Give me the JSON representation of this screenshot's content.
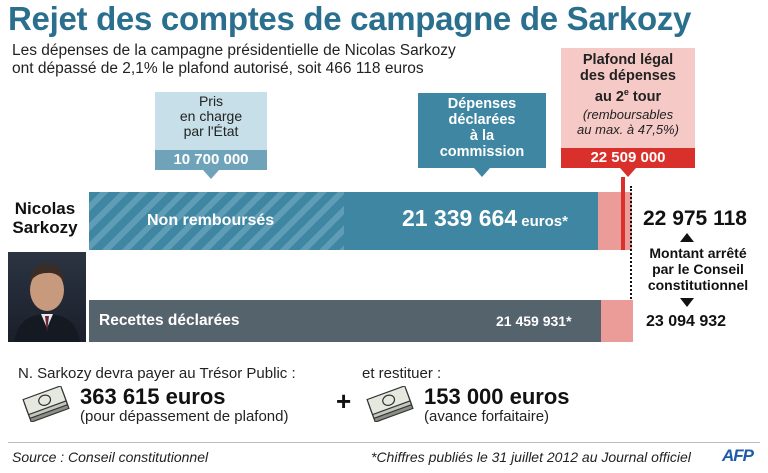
{
  "header": {
    "title": "Rejet des comptes de campagne de Sarkozy",
    "subtitle_line1": "Les dépenses de la campagne présidentielle de Nicolas Sarkozy",
    "subtitle_line2": "ont dépassé de 2,1% le plafond autorisé, soit 466 118 euros"
  },
  "state_box": {
    "line1": "Pris",
    "line2": "en charge",
    "line3": "par l'État",
    "amount": "10 700 000"
  },
  "declared_box": {
    "line1": "Dépenses",
    "line2": "déclarées",
    "line3": "à la",
    "line4": "commission"
  },
  "ceiling_box": {
    "line1": "Plafond légal",
    "line2": "des dépenses",
    "line3_pre": "au 2",
    "line3_sup": "e",
    "line3_post": " tour",
    "note1": "(remboursables",
    "note2": "au max. à 47,5%)",
    "amount": "22 509 000"
  },
  "candidate": {
    "first": "Nicolas",
    "last": "Sarkozy"
  },
  "expenses_bar": {
    "label": "Non remboursés",
    "amount": "21 339 664",
    "unit": " euros*"
  },
  "receipts_bar": {
    "label": "Recettes déclarées",
    "amount": "21 459 931*"
  },
  "decision": {
    "amount_top": "22 975 118",
    "line1": "Montant arrêté",
    "line2": "par le Conseil",
    "line3": "constitutionnel",
    "amount_bottom": "23 094 932"
  },
  "payment": {
    "intro": "N. Sarkozy devra payer au Trésor Public :",
    "amount": "363 615 euros",
    "reason": "(pour dépassement de plafond)",
    "plus": "+",
    "intro2": "et restituer :",
    "amount2": "153 000 euros",
    "reason2": "(avance forfaitaire)"
  },
  "footer": {
    "source": "Source : Conseil constitutionnel",
    "note": "*Chiffres publiés le 31 juillet 2012 au Journal officiel",
    "logo": "AFP"
  },
  "colors": {
    "title": "#2b6f8f",
    "blue": "#3e86a2",
    "light_blue": "#c7dfe8",
    "red": "#d9302c",
    "pink": "#ec9c98",
    "grey": "#55636d"
  },
  "icons": {
    "money": "banknote-stack-icon",
    "portrait": "portrait-photo"
  }
}
